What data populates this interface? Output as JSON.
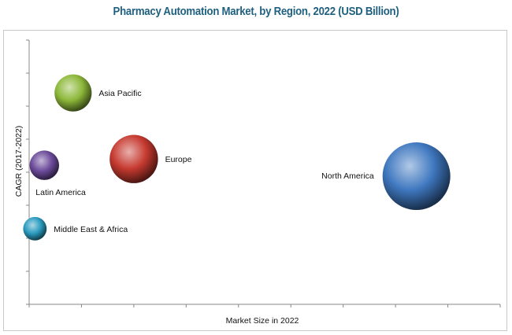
{
  "chart_data": {
    "type": "bubble",
    "title": "Pharmacy Automation Market, by Region, 2022 (USD Billion)",
    "xlabel": "Market Size in 2022",
    "ylabel": "CAGR (2017-2022)",
    "tick_labels": "none",
    "xlim": [
      0,
      9
    ],
    "ylim": [
      0,
      8
    ],
    "grid": false,
    "series": [
      {
        "name": "Asia Pacific",
        "x": 0.84,
        "y": 6.4,
        "size": 0.3,
        "color": "#8db83a",
        "label_side": "right"
      },
      {
        "name": "Latin America",
        "x": 0.29,
        "y": 4.21,
        "size": 0.19,
        "color": "#6b4a9a",
        "label_side": "below"
      },
      {
        "name": "Europe",
        "x": 2.0,
        "y": 4.4,
        "size": 0.51,
        "color": "#c63a30",
        "label_side": "right"
      },
      {
        "name": "North America",
        "x": 7.4,
        "y": 3.88,
        "size": 1.0,
        "color": "#3f78c0",
        "label_side": "left"
      },
      {
        "name": "Middle East & Africa",
        "x": 0.11,
        "y": 2.29,
        "size": 0.12,
        "color": "#2a9bbf",
        "label_side": "right"
      }
    ]
  }
}
